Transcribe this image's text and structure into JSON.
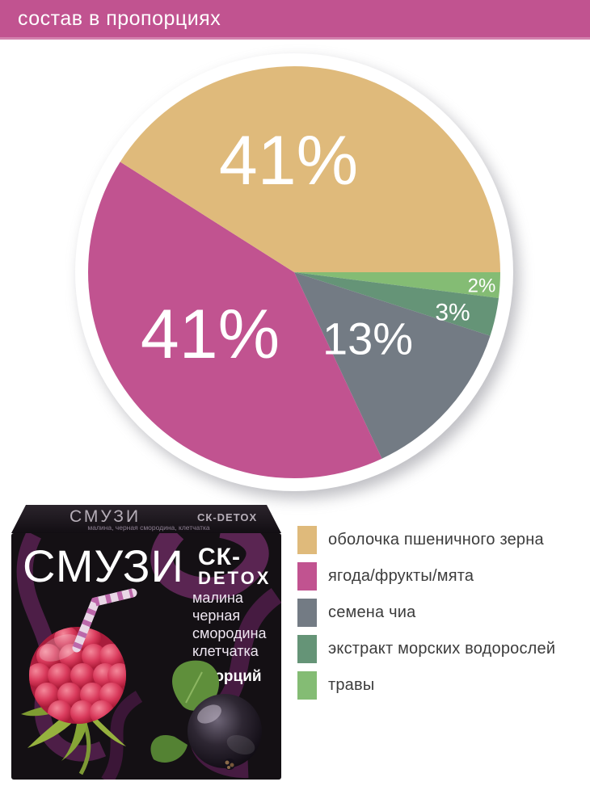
{
  "header": {
    "title": "состав в пропорциях",
    "bg_color": "#c15390"
  },
  "chart_data": {
    "type": "pie",
    "title": "состав в пропорциях",
    "direction": "clockwise",
    "start_angle_deg": 0,
    "legend_position": "bottom-right",
    "slices": [
      {
        "label": "травы",
        "value": 2,
        "value_label": "2%",
        "color": "#84bc74"
      },
      {
        "label": "экстракт морских водорослей",
        "value": 3,
        "value_label": "3%",
        "color": "#659477"
      },
      {
        "label": "семена чиа",
        "value": 13,
        "value_label": "13%",
        "color": "#737b84"
      },
      {
        "label": "ягода/фрукты/мята",
        "value": 41,
        "value_label": "41%",
        "color": "#c15390"
      },
      {
        "label": "оболочка пшеничного зерна",
        "value": 41,
        "value_label": "41%",
        "color": "#dfba7b"
      }
    ]
  },
  "legend": {
    "items": [
      {
        "label": "оболочка пшеничного зерна",
        "color": "#dfba7b"
      },
      {
        "label": "ягода/фрукты/мята",
        "color": "#c15390"
      },
      {
        "label": "семена чиа",
        "color": "#737b84"
      },
      {
        "label": "экстракт морских водорослей",
        "color": "#659477"
      },
      {
        "label": "травы",
        "color": "#84bc74"
      }
    ]
  },
  "product": {
    "lid_brand": "СМУЗИ",
    "lid_logo": "СК-DETOX",
    "lid_subtitle": "малина, черная смородина, клетчатка",
    "brand": "СМУЗИ",
    "logo": "СК-",
    "line": "DETOX",
    "ingredients": [
      "малина",
      "черная",
      "смородина",
      "клетчатка"
    ],
    "servings": "7 порций"
  }
}
